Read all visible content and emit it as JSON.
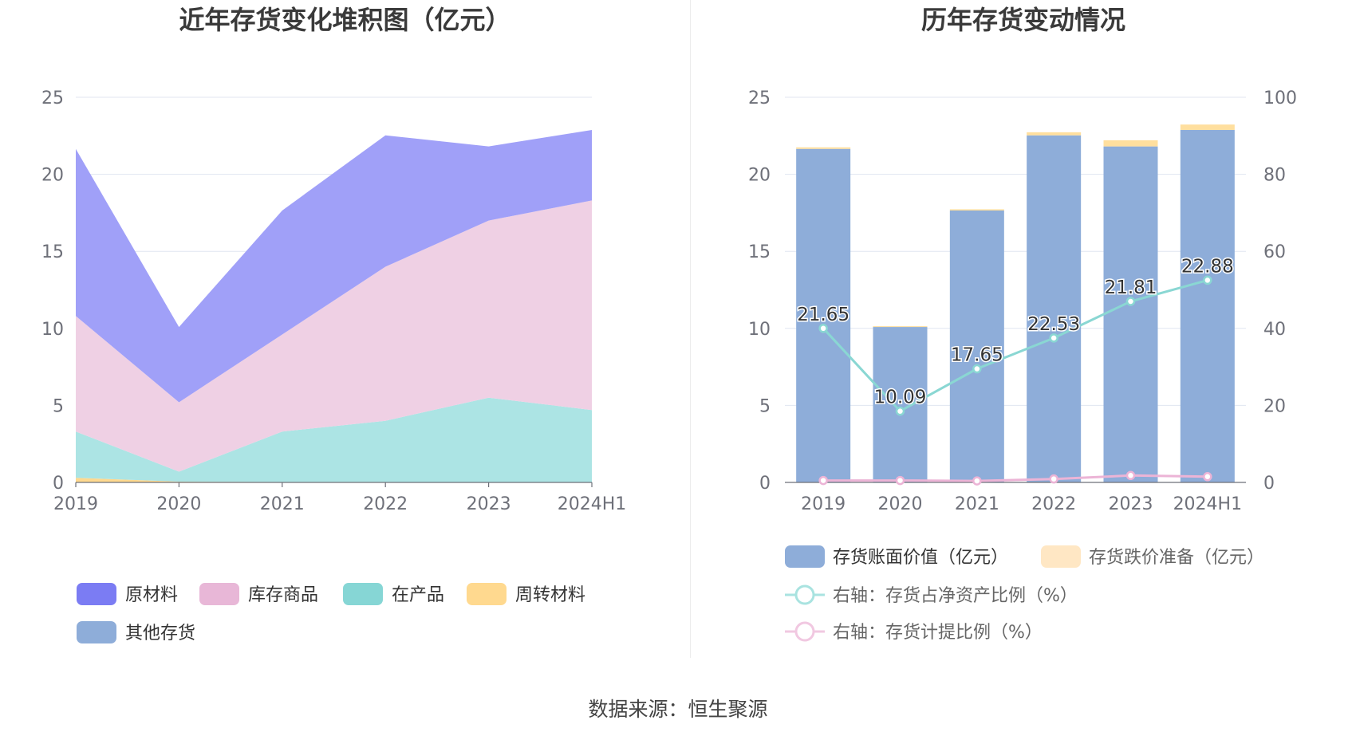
{
  "source": "数据来源：恒生聚源",
  "chart_data": [
    {
      "type": "area",
      "stacked": true,
      "title": "近年存货变化堆积图（亿元）",
      "categories": [
        "2019",
        "2020",
        "2021",
        "2022",
        "2023",
        "2024H1"
      ],
      "ylim": [
        0,
        25
      ],
      "yticks": [
        "0",
        "5",
        "10",
        "15",
        "20",
        "25"
      ],
      "series": [
        {
          "name": "其他存货",
          "values": [
            0,
            0,
            0,
            0,
            0,
            0
          ],
          "color": "#8eadd9"
        },
        {
          "name": "周转材料",
          "values": [
            0.3,
            0.05,
            0.03,
            0.03,
            0.02,
            0.02
          ],
          "color": "#ffd98f"
        },
        {
          "name": "在产品",
          "values": [
            3.0,
            0.65,
            3.27,
            3.97,
            5.48,
            4.68
          ],
          "color": "#ace4e4"
        },
        {
          "name": "库存商品",
          "values": [
            7.5,
            4.5,
            6.3,
            10.0,
            11.5,
            13.6
          ],
          "color": "#efd0e4"
        },
        {
          "name": "原材料",
          "values": [
            10.85,
            4.89,
            8.05,
            8.53,
            4.81,
            4.58
          ],
          "color": "#a0a0f8"
        }
      ],
      "legend": [
        {
          "name": "原材料",
          "color": "#7b7cf3"
        },
        {
          "name": "库存商品",
          "color": "#e8b7d7"
        },
        {
          "name": "在产品",
          "color": "#86d6d5"
        },
        {
          "name": "周转材料",
          "color": "#ffd98f"
        },
        {
          "name": "其他存货",
          "color": "#8eadd9"
        }
      ]
    },
    {
      "type": "bar",
      "title": "历年存货变动情况",
      "categories": [
        "2019",
        "2020",
        "2021",
        "2022",
        "2023",
        "2024H1"
      ],
      "ylim": [
        0,
        25
      ],
      "yticks": [
        "0",
        "5",
        "10",
        "15",
        "20",
        "25"
      ],
      "y2lim": [
        0,
        100
      ],
      "y2ticks": [
        "0",
        "20",
        "40",
        "60",
        "80",
        "100"
      ],
      "bars": [
        {
          "name": "存货账面价值（亿元）",
          "values": [
            21.65,
            10.09,
            17.65,
            22.53,
            21.81,
            22.88
          ],
          "color": "#8eadd9"
        },
        {
          "name": "存货跌价准备（亿元）",
          "values": [
            0.1,
            0.05,
            0.08,
            0.2,
            0.4,
            0.35
          ],
          "color": "#ffdf9e"
        }
      ],
      "bar_labels": [
        "21.65",
        "10.09",
        "17.65",
        "22.53",
        "21.81",
        "22.88"
      ],
      "lines": [
        {
          "name": "右轴：存货占净资产比例（%）",
          "values": [
            40.0,
            18.5,
            29.5,
            37.5,
            47.0,
            52.5
          ],
          "color": "#8ad7d3"
        },
        {
          "name": "右轴：存货计提比例（%）",
          "values": [
            0.5,
            0.5,
            0.4,
            0.9,
            1.8,
            1.5
          ],
          "color": "#ecb4d6"
        }
      ],
      "legend": [
        {
          "name": "存货账面价值（亿元）",
          "color": "#8eadd9",
          "kind": "bar"
        },
        {
          "name": "存货跌价准备（亿元）",
          "color": "#ffe7c4",
          "kind": "bar"
        },
        {
          "name": "右轴：存货占净资产比例（%）",
          "color": "#a9e3e0",
          "kind": "line"
        },
        {
          "name": "右轴：存货计提比例（%）",
          "color": "#f1c8e1",
          "kind": "line"
        }
      ]
    }
  ]
}
